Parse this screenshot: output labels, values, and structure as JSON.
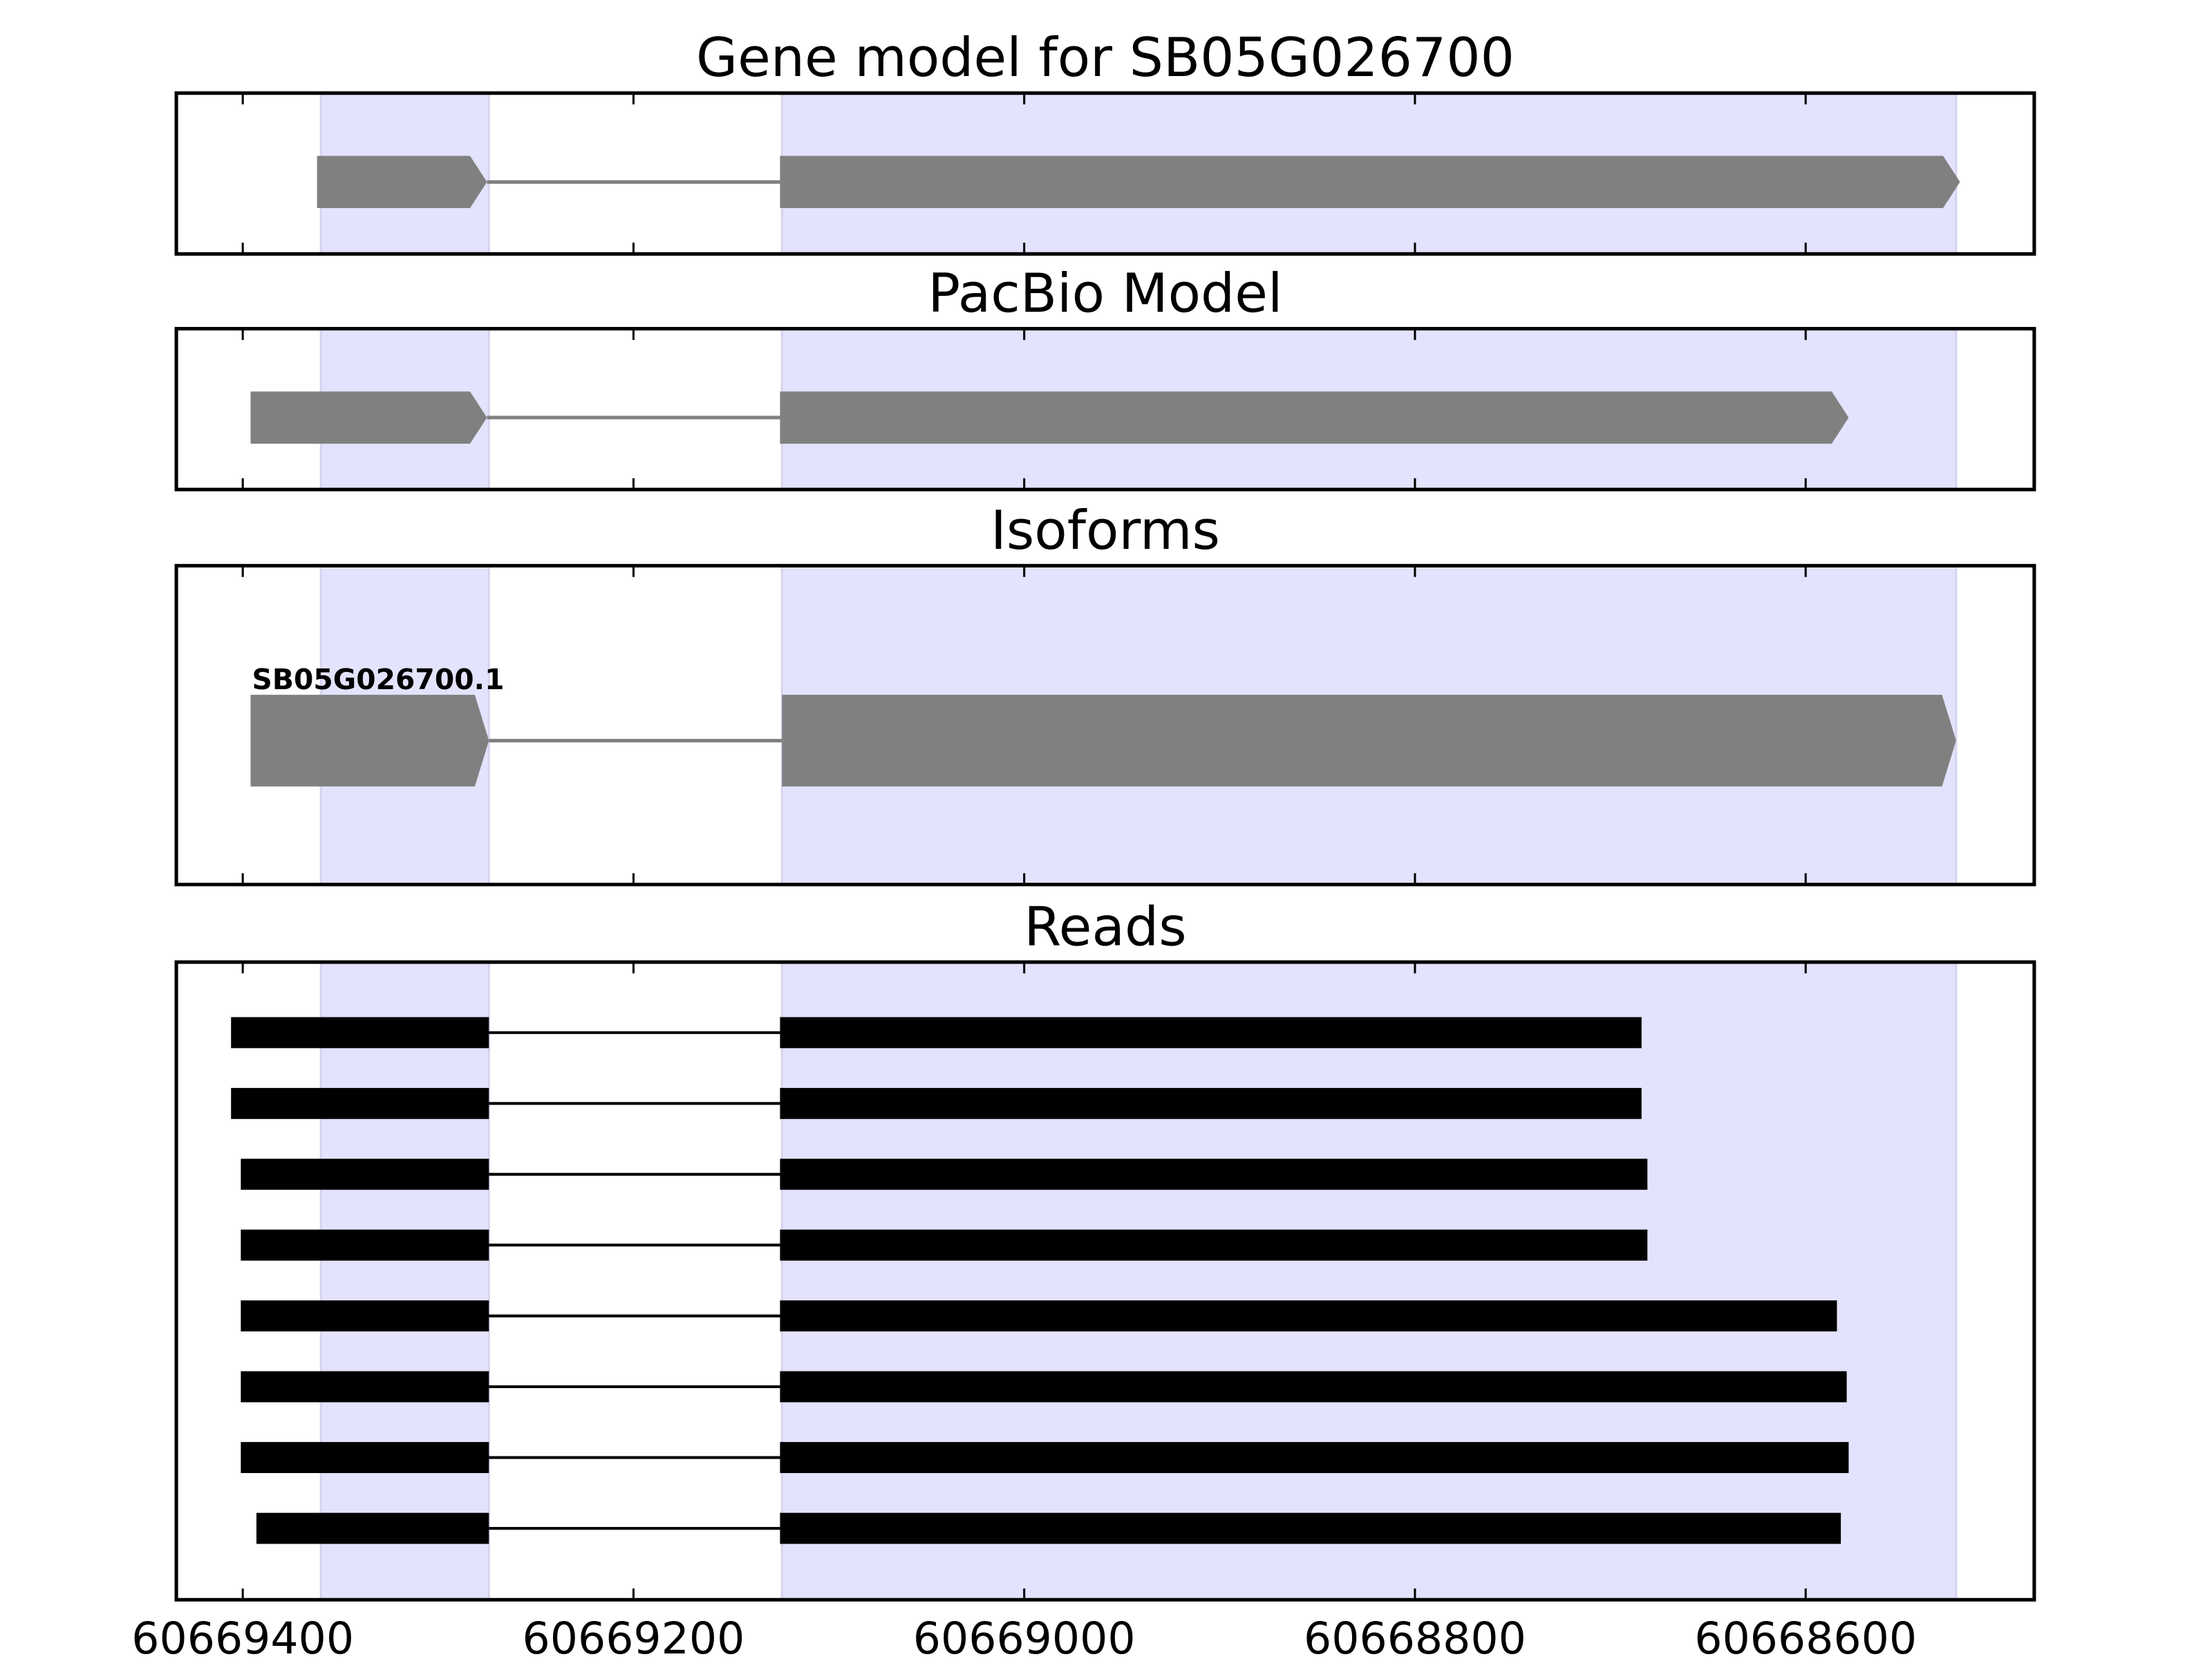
{
  "chart_data": {
    "type": "gene-track",
    "x_axis": {
      "reversed": true,
      "xlim": [
        60669434,
        60668483
      ],
      "ticks": [
        60669400,
        60669200,
        60669000,
        60668800,
        60668600
      ],
      "tick_labels": [
        "60669400",
        "60669200",
        "60669000",
        "60668800",
        "60668600"
      ]
    },
    "shaded_exon_regions": [
      [
        60669360,
        60669274
      ],
      [
        60669124,
        60668523
      ]
    ],
    "colors": {
      "shade": "#e3e3fd",
      "model": "#808080",
      "reads": "#000000"
    },
    "panels": [
      {
        "title": "Gene model for SB05G026700",
        "style": "model",
        "tracks": [
          {
            "label": "",
            "exons": [
              [
                60669362,
                60669275
              ],
              [
                60669125,
                60668521
              ]
            ]
          }
        ]
      },
      {
        "title": "PacBio Model",
        "style": "model",
        "tracks": [
          {
            "label": "",
            "exons": [
              [
                60669396,
                60669275
              ],
              [
                60669125,
                60668578
              ]
            ]
          }
        ]
      },
      {
        "title": "Isoforms",
        "style": "model-tall",
        "tracks": [
          {
            "label": "SB05G026700.1",
            "exons": [
              [
                60669396,
                60669274
              ],
              [
                60669124,
                60668523
              ]
            ]
          }
        ]
      },
      {
        "title": "Reads",
        "style": "reads",
        "tracks": [
          {
            "label": "",
            "exons": [
              [
                60669406,
                60669274
              ],
              [
                60669125,
                60668684
              ]
            ]
          },
          {
            "label": "",
            "exons": [
              [
                60669406,
                60669274
              ],
              [
                60669125,
                60668684
              ]
            ]
          },
          {
            "label": "",
            "exons": [
              [
                60669401,
                60669274
              ],
              [
                60669125,
                60668681
              ]
            ]
          },
          {
            "label": "",
            "exons": [
              [
                60669401,
                60669274
              ],
              [
                60669125,
                60668681
              ]
            ]
          },
          {
            "label": "",
            "exons": [
              [
                60669401,
                60669274
              ],
              [
                60669125,
                60668584
              ]
            ]
          },
          {
            "label": "",
            "exons": [
              [
                60669401,
                60669274
              ],
              [
                60669125,
                60668579
              ]
            ]
          },
          {
            "label": "",
            "exons": [
              [
                60669401,
                60669274
              ],
              [
                60669125,
                60668578
              ]
            ]
          },
          {
            "label": "",
            "exons": [
              [
                60669393,
                60669274
              ],
              [
                60669125,
                60668582
              ]
            ]
          }
        ]
      }
    ]
  }
}
